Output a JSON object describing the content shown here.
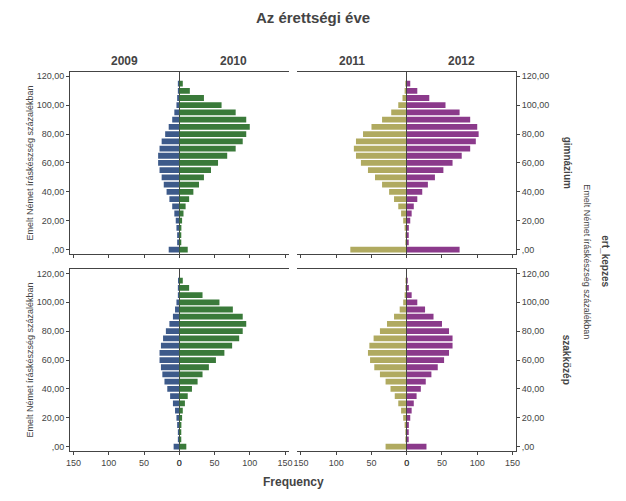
{
  "chart_data": {
    "type": "bar",
    "orientation": "horizontal",
    "title": "Az érettségi éve",
    "x_label": "Frequency",
    "y_label": "Emelt Német íráskészség százalékban",
    "row_title": "ert_kepzes",
    "grid": false,
    "x": [
      0,
      5,
      10,
      15,
      20,
      25,
      30,
      35,
      40,
      45,
      50,
      55,
      60,
      65,
      70,
      75,
      80,
      85,
      90,
      95,
      100,
      105,
      110,
      115
    ],
    "xlim": [
      0,
      155
    ],
    "xticks": [
      0,
      50,
      100,
      150
    ],
    "ylim": [
      -3,
      123
    ],
    "yticks": [
      {
        "value": 0,
        "label": ",00"
      },
      {
        "value": 20,
        "label": "20,00"
      },
      {
        "value": 40,
        "label": "40,00"
      },
      {
        "value": 60,
        "label": "60,00"
      },
      {
        "value": 80,
        "label": "80,00"
      },
      {
        "value": 100,
        "label": "100,00"
      },
      {
        "value": 120,
        "label": "120,00"
      }
    ],
    "rows": [
      {
        "label": "gimnázium",
        "panels": [
          {
            "series": [
              {
                "name": "2009",
                "color": "#3d5a8a",
                "values": [
                  15,
                  3,
                  3,
                  4,
                  5,
                  7,
                  10,
                  14,
                  18,
                  22,
                  25,
                  28,
                  30,
                  30,
                  28,
                  25,
                  20,
                  15,
                  10,
                  7,
                  4,
                  3,
                  2,
                  2
                ]
              },
              {
                "name": "2010",
                "color": "#3a7a3a",
                "values": [
                  12,
                  2,
                  2,
                  3,
                  4,
                  6,
                  9,
                  14,
                  20,
                  28,
                  35,
                  45,
                  55,
                  68,
                  80,
                  90,
                  95,
                  100,
                  95,
                  80,
                  60,
                  35,
                  15,
                  5
                ]
              }
            ]
          },
          {
            "series": [
              {
                "name": "2011",
                "color": "#b0aa60",
                "values": [
                  80,
                  2,
                  2,
                  3,
                  5,
                  8,
                  12,
                  18,
                  25,
                  35,
                  45,
                  55,
                  65,
                  72,
                  75,
                  72,
                  62,
                  50,
                  35,
                  22,
                  12,
                  6,
                  3,
                  2
                ]
              },
              {
                "name": "2012",
                "color": "#8b3a8b",
                "values": [
                  75,
                  2,
                  2,
                  3,
                  5,
                  7,
                  10,
                  15,
                  22,
                  30,
                  40,
                  52,
                  65,
                  78,
                  90,
                  98,
                  102,
                  100,
                  90,
                  75,
                  55,
                  32,
                  15,
                  5
                ]
              }
            ]
          }
        ]
      },
      {
        "label": "szakközép",
        "panels": [
          {
            "series": [
              {
                "name": "2009",
                "color": "#3d5a8a",
                "values": [
                  8,
                  2,
                  2,
                  3,
                  4,
                  6,
                  9,
                  13,
                  17,
                  21,
                  24,
                  26,
                  28,
                  28,
                  26,
                  23,
                  19,
                  14,
                  9,
                  6,
                  4,
                  2,
                  2,
                  1
                ]
              },
              {
                "name": "2010",
                "color": "#3a7a3a",
                "values": [
                  10,
                  2,
                  2,
                  3,
                  4,
                  5,
                  8,
                  12,
                  18,
                  26,
                  33,
                  42,
                  52,
                  64,
                  75,
                  85,
                  90,
                  95,
                  90,
                  76,
                  57,
                  33,
                  14,
                  5
                ]
              }
            ]
          },
          {
            "series": [
              {
                "name": "2011",
                "color": "#b0aa60",
                "values": [
                  30,
                  2,
                  2,
                  3,
                  5,
                  8,
                  12,
                  17,
                  23,
                  30,
                  38,
                  46,
                  52,
                  55,
                  53,
                  47,
                  38,
                  28,
                  18,
                  10,
                  5,
                  3,
                  2,
                  1
                ]
              },
              {
                "name": "2012",
                "color": "#8b3a8b",
                "values": [
                  28,
                  2,
                  2,
                  3,
                  5,
                  7,
                  10,
                  14,
                  20,
                  27,
                  35,
                  44,
                  53,
                  60,
                  65,
                  65,
                  60,
                  50,
                  38,
                  26,
                  15,
                  7,
                  3,
                  1
                ]
              }
            ]
          }
        ]
      }
    ]
  }
}
